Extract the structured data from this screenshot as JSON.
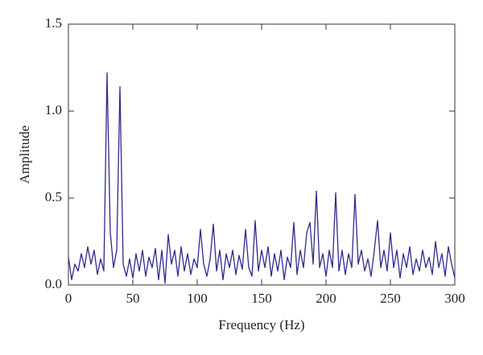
{
  "chart_data": {
    "type": "line",
    "xlabel": "Frequency (Hz)",
    "ylabel": "Amplitude",
    "x": [
      0,
      2.5,
      5,
      7.5,
      10,
      12.5,
      15,
      17.5,
      20,
      22.5,
      25,
      27.5,
      30,
      32.5,
      35,
      37.5,
      40,
      42.5,
      45,
      47.5,
      50,
      52.5,
      55,
      57.5,
      60,
      62.5,
      65,
      67.5,
      70,
      72.5,
      75,
      77.5,
      80,
      82.5,
      85,
      87.5,
      90,
      92.5,
      95,
      97.5,
      100,
      102.5,
      105,
      107.5,
      110,
      112.5,
      115,
      117.5,
      120,
      122.5,
      125,
      127.5,
      130,
      132.5,
      135,
      137.5,
      140,
      142.5,
      145,
      147.5,
      150,
      152.5,
      155,
      157.5,
      160,
      162.5,
      165,
      167.5,
      170,
      172.5,
      175,
      177.5,
      180,
      182.5,
      185,
      187.5,
      190,
      192.5,
      195,
      197.5,
      200,
      202.5,
      205,
      207.5,
      210,
      212.5,
      215,
      217.5,
      220,
      222.5,
      225,
      227.5,
      230,
      232.5,
      235,
      237.5,
      240,
      242.5,
      245,
      247.5,
      250,
      252.5,
      255,
      257.5,
      260,
      262.5,
      265,
      267.5,
      270,
      272.5,
      275,
      277.5,
      280,
      282.5,
      285,
      287.5,
      290,
      292.5,
      295,
      297.5,
      300
    ],
    "series": [
      {
        "color": "#2e2a8a",
        "values": [
          0.16,
          0.03,
          0.12,
          0.08,
          0.18,
          0.1,
          0.22,
          0.12,
          0.2,
          0.06,
          0.15,
          0.08,
          1.22,
          0.3,
          0.1,
          0.2,
          1.14,
          0.12,
          0.05,
          0.15,
          0.04,
          0.18,
          0.08,
          0.2,
          0.05,
          0.16,
          0.1,
          0.21,
          0.03,
          0.2,
          0.01,
          0.29,
          0.12,
          0.2,
          0.05,
          0.22,
          0.08,
          0.18,
          0.06,
          0.15,
          0.1,
          0.32,
          0.12,
          0.05,
          0.15,
          0.35,
          0.08,
          0.2,
          0.03,
          0.18,
          0.1,
          0.2,
          0.06,
          0.17,
          0.09,
          0.32,
          0.1,
          0.05,
          0.37,
          0.08,
          0.2,
          0.1,
          0.22,
          0.05,
          0.18,
          0.08,
          0.2,
          0.03,
          0.16,
          0.1,
          0.36,
          0.06,
          0.2,
          0.1,
          0.3,
          0.36,
          0.12,
          0.54,
          0.1,
          0.18,
          0.05,
          0.2,
          0.1,
          0.53,
          0.08,
          0.2,
          0.06,
          0.18,
          0.1,
          0.52,
          0.12,
          0.2,
          0.08,
          0.15,
          0.05,
          0.2,
          0.37,
          0.1,
          0.2,
          0.08,
          0.3,
          0.1,
          0.2,
          0.04,
          0.18,
          0.1,
          0.22,
          0.06,
          0.15,
          0.08,
          0.2,
          0.1,
          0.16,
          0.06,
          0.25,
          0.1,
          0.18,
          0.05,
          0.22,
          0.12,
          0.04
        ]
      }
    ],
    "xlim": [
      0,
      300
    ],
    "xticks": [
      0,
      50,
      100,
      150,
      200,
      250,
      300
    ],
    "ylim": [
      0,
      1.5
    ],
    "yticks": [
      {
        "value": 0,
        "label": "0.0"
      },
      0.5,
      {
        "value": 1,
        "label": "1.0"
      },
      1.5
    ]
  }
}
